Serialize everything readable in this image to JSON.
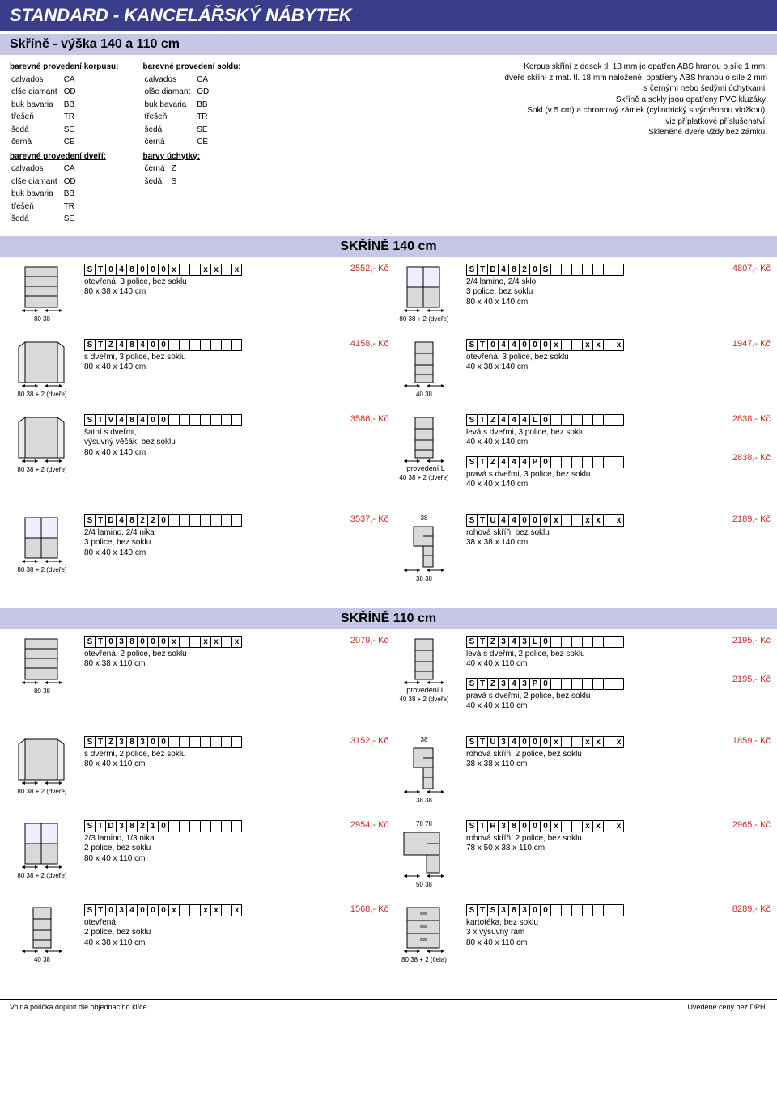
{
  "header": {
    "title": "STANDARD - KANCELÁŘSKÝ NÁBYTEK",
    "subtitle": "Skříně - výška 140 a 110 cm"
  },
  "intro": {
    "col1_hdr": "barevné provedení korpusu:",
    "col1_rows": [
      [
        "calvados",
        "CA"
      ],
      [
        "olše diamant",
        "OD"
      ],
      [
        "buk bavaria",
        "BB"
      ],
      [
        "třešeň",
        "TR"
      ],
      [
        "šedá",
        "SE"
      ],
      [
        "černá",
        "CE"
      ]
    ],
    "col1b_hdr": "barevné provedení dveří:",
    "col1b_rows": [
      [
        "calvados",
        "CA"
      ],
      [
        "olše diamant",
        "OD"
      ],
      [
        "buk bavaria",
        "BB"
      ],
      [
        "třešeň",
        "TR"
      ],
      [
        "šedá",
        "SE"
      ]
    ],
    "col2_hdr": "barevné provedení soklu:",
    "col2_rows": [
      [
        "calvados",
        "CA"
      ],
      [
        "olše diamant",
        "OD"
      ],
      [
        "buk bavaria",
        "BB"
      ],
      [
        "třešeň",
        "TR"
      ],
      [
        "šedá",
        "SE"
      ],
      [
        "černá",
        "CE"
      ]
    ],
    "col2b_hdr": "barvy úchytky:",
    "col2b_rows": [
      [
        "černá",
        "Z"
      ],
      [
        "šedá",
        "S"
      ]
    ],
    "right_lines": [
      "Korpus skříní z desek tl. 18 mm je opatřen ABS hranou o síle 1 mm,",
      "dveře skříní  z mat. tl. 18 mm naložené, opatřeny ABS hranou o síle 2 mm",
      "s černými nebo šedými úchytkami.",
      "Skříně a sokly jsou opatřeny PVC kluzáky.",
      "Sokl (v 5 cm) a chromový zámek (cylindrický s výměnnou vložkou),",
      "viz příplatkové příslušenství.",
      "Skleněné dveře vždy bez zámku."
    ]
  },
  "sections": {
    "s140": "SKŘÍNĚ 140 cm",
    "s110": "SKŘÍNĚ 110 cm"
  },
  "products": [
    {
      "row": "140-1",
      "left": {
        "code": [
          "S",
          "T",
          "0",
          "4",
          "8",
          "0",
          "0",
          "0",
          "x",
          "",
          "",
          "x",
          "x",
          "",
          "x"
        ],
        "desc": "otevřená, 3 police, bez soklu\n80 x 38 x 140 cm",
        "price": "2552,- Kč",
        "dims": "80    38"
      },
      "right": {
        "code": [
          "S",
          "T",
          "D",
          "4",
          "8",
          "2",
          "0",
          "S",
          "",
          "",
          "",
          "",
          "",
          "",
          ""
        ],
        "desc": "2/4 lamino, 2/4 sklo\n3 police, bez soklu\n80 x 40 x 140 cm",
        "price": "4807,- Kč",
        "dims": "80    38 + 2 (dveře)"
      }
    },
    {
      "row": "140-2",
      "left": {
        "code": [
          "S",
          "T",
          "Z",
          "4",
          "8",
          "4",
          "0",
          "0",
          "",
          "",
          "",
          "",
          "",
          "",
          ""
        ],
        "desc": "s dveřmi, 3 police, bez soklu\n80 x 40 x 140 cm",
        "price": "4158,- Kč",
        "dims": "80    38 + 2 (dveře)"
      },
      "right": {
        "code": [
          "S",
          "T",
          "0",
          "4",
          "4",
          "0",
          "0",
          "0",
          "x",
          "",
          "",
          "x",
          "x",
          "",
          "x"
        ],
        "desc": "otevřená, 3 police, bez soklu\n40 x 38 x 140 cm",
        "price": "1947,- Kč",
        "dims": "40    38"
      }
    },
    {
      "row": "140-3",
      "left": {
        "code": [
          "S",
          "T",
          "V",
          "4",
          "8",
          "4",
          "0",
          "0",
          "",
          "",
          "",
          "",
          "",
          "",
          ""
        ],
        "desc": "šatní s dveřmi,\nvýsuvný věšák, bez soklu\n80 x 40 x 140 cm",
        "price": "3586,- Kč",
        "dims": "80    38 + 2 (dveře)"
      },
      "right": {
        "stack": [
          {
            "code": [
              "S",
              "T",
              "Z",
              "4",
              "4",
              "4",
              "L",
              "0",
              "",
              "",
              "",
              "",
              "",
              "",
              ""
            ],
            "desc": "levá s dveřmi, 3 police, bez soklu\n40 x 40 x 140 cm",
            "price": "2838,- Kč"
          },
          {
            "code": [
              "S",
              "T",
              "Z",
              "4",
              "4",
              "4",
              "P",
              "0",
              "",
              "",
              "",
              "",
              "",
              "",
              ""
            ],
            "desc": "pravá s dveřmi, 3 police, bez soklu\n40 x 40 x 140 cm",
            "price": "2838,- Kč"
          }
        ],
        "prov": "provedení L",
        "dims": "40    38 + 2 (dveře)"
      }
    },
    {
      "row": "140-4",
      "left": {
        "code": [
          "S",
          "T",
          "D",
          "4",
          "8",
          "2",
          "2",
          "0",
          "",
          "",
          "",
          "",
          "",
          "",
          ""
        ],
        "desc": "2/4 lamino, 2/4 nika\n3 police, bez soklu\n80 x 40 x 140 cm",
        "price": "3537,- Kč",
        "dims": "80    38 + 2 (dveře)"
      },
      "right": {
        "code": [
          "S",
          "T",
          "U",
          "4",
          "4",
          "0",
          "0",
          "0",
          "x",
          "",
          "",
          "x",
          "x",
          "",
          "x"
        ],
        "desc": "rohová skříň, bez soklu\n38 x 38 x 140 cm",
        "price": "2189,- Kč",
        "dims": "38        38",
        "topdim": "38"
      }
    },
    {
      "row": "110-1",
      "left": {
        "code": [
          "S",
          "T",
          "0",
          "3",
          "8",
          "0",
          "0",
          "0",
          "x",
          "",
          "",
          "x",
          "x",
          "",
          "x"
        ],
        "desc": "otevřená, 2 police, bez soklu\n80 x 38 x 110 cm",
        "price": "2079,- Kč",
        "dims": "80    38"
      },
      "right": {
        "stack": [
          {
            "code": [
              "S",
              "T",
              "Z",
              "3",
              "4",
              "3",
              "L",
              "0",
              "",
              "",
              "",
              "",
              "",
              "",
              ""
            ],
            "desc": "levá s dveřmi, 2 police, bez soklu\n40 x 40 x 110 cm",
            "price": "2195,- Kč"
          },
          {
            "code": [
              "S",
              "T",
              "Z",
              "3",
              "4",
              "3",
              "P",
              "0",
              "",
              "",
              "",
              "",
              "",
              "",
              ""
            ],
            "desc": "pravá s dveřmi, 2 police, bez soklu\n40 x 40 x 110 cm",
            "price": "2195,- Kč"
          }
        ],
        "prov": "provedení L",
        "dims": "40    38 + 2 (dveře)"
      }
    },
    {
      "row": "110-2",
      "left": {
        "code": [
          "S",
          "T",
          "Z",
          "3",
          "8",
          "3",
          "0",
          "0",
          "",
          "",
          "",
          "",
          "",
          "",
          ""
        ],
        "desc": "s dveřmi, 2 police, bez soklu\n80 x 40 x 110 cm",
        "price": "3152,- Kč",
        "dims": "80    38 + 2 (dveře)"
      },
      "right": {
        "code": [
          "S",
          "T",
          "U",
          "3",
          "4",
          "0",
          "0",
          "0",
          "x",
          "",
          "",
          "x",
          "x",
          "",
          "x"
        ],
        "desc": "rohová skříň, 2 police, bez soklu\n38 x 38 x 110 cm",
        "price": "1859,- Kč",
        "dims": "38        38",
        "topdim": "38"
      }
    },
    {
      "row": "110-3",
      "left": {
        "code": [
          "S",
          "T",
          "D",
          "3",
          "8",
          "2",
          "1",
          "0",
          "",
          "",
          "",
          "",
          "",
          "",
          ""
        ],
        "desc": "2/3 lamino, 1/3 nika\n2 police, bez soklu\n80 x 40 x 110 cm",
        "price": "2954,- Kč",
        "dims": "80    38 + 2 (dveře)"
      },
      "right": {
        "code": [
          "S",
          "T",
          "R",
          "3",
          "8",
          "0",
          "0",
          "0",
          "x",
          "",
          "",
          "x",
          "x",
          "",
          "x"
        ],
        "desc": "rohová skříň, 2 police, bez soklu\n78 x 50 x 38 x 110 cm",
        "price": "2965,- Kč",
        "dims": "50  38",
        "topdim": "78     78"
      }
    },
    {
      "row": "110-4",
      "left": {
        "code": [
          "S",
          "T",
          "0",
          "3",
          "4",
          "0",
          "0",
          "0",
          "x",
          "",
          "",
          "x",
          "x",
          "",
          "x"
        ],
        "desc": "otevřená\n2 police, bez soklu\n40 x 38 x 110 cm",
        "price": "1568,- Kč",
        "dims": "40    38"
      },
      "right": {
        "code": [
          "S",
          "T",
          "S",
          "3",
          "8",
          "3",
          "0",
          "0",
          "",
          "",
          "",
          "",
          "",
          "",
          ""
        ],
        "desc": "kartotéka, bez soklu\n3 x výsuvný rám\n80 x 40 x 110 cm",
        "price": "8289,- Kč",
        "dims": "80    38 + 2 (čela)"
      }
    }
  ],
  "footer": {
    "left": "Volná políčka doplnit dle objednacího klíče.",
    "right": "Uvedené ceny bez DPH."
  },
  "colors": {
    "band_bg": "#3a3d8a",
    "light_band": "#c6c7e6",
    "price": "#c6302b",
    "cab_fill": "#d9d9d9",
    "cab_stroke": "#000000"
  }
}
